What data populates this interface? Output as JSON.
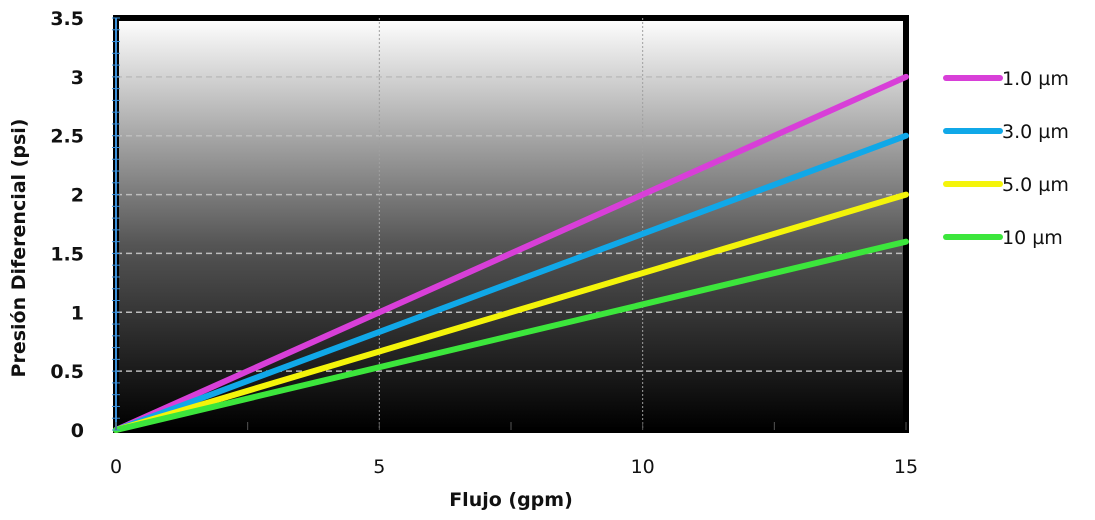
{
  "chart_data": {
    "type": "line",
    "xlabel": "Flujo (gpm)",
    "ylabel": "Presión Diferencial (psi)",
    "xlim": [
      0,
      15
    ],
    "ylim": [
      0,
      3.5
    ],
    "x_ticks": [
      "0",
      "5",
      "10",
      "15"
    ],
    "y_ticks": [
      "0",
      "0.5",
      "1",
      "1.5",
      "2",
      "2.5",
      "3",
      "3.5"
    ],
    "grid": true,
    "legend_position": "right",
    "series": [
      {
        "name": "1.0 µm",
        "color": "#d83fd8",
        "x": [
          0,
          15
        ],
        "y": [
          0,
          3.0
        ]
      },
      {
        "name": "3.0 µm",
        "color": "#10a8e8",
        "x": [
          0,
          15
        ],
        "y": [
          0,
          2.5
        ]
      },
      {
        "name": "5.0 µm",
        "color": "#f4f40a",
        "x": [
          0,
          15
        ],
        "y": [
          0,
          2.0
        ]
      },
      {
        "name": "10 µm",
        "color": "#3ce63c",
        "x": [
          0,
          15
        ],
        "y": [
          0,
          1.6
        ]
      }
    ]
  }
}
